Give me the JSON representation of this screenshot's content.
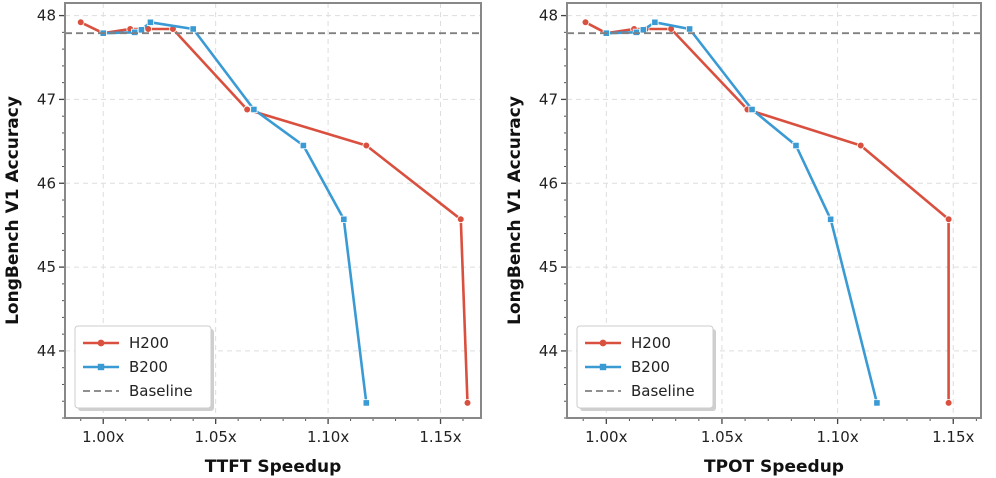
{
  "chart_data": [
    {
      "type": "line",
      "xlabel": "TTFT Speedup",
      "ylabel": "LongBench V1 Accuracy",
      "xlim": [
        0.983,
        1.168
      ],
      "ylim": [
        43.2,
        48.15
      ],
      "xticks": [
        1.0,
        1.05,
        1.1,
        1.15
      ],
      "xtick_labels": [
        "1.00x",
        "1.05x",
        "1.10x",
        "1.15x"
      ],
      "yticks": [
        44,
        45,
        46,
        47,
        48
      ],
      "ytick_labels": [
        "44",
        "45",
        "46",
        "47",
        "48"
      ],
      "grid": true,
      "legend_position": "lower-left",
      "series": [
        {
          "name": "H200",
          "color": "#d9503f",
          "marker": "circle",
          "x": [
            0.99,
            1.0,
            1.012,
            1.02,
            1.031,
            1.064,
            1.117,
            1.159,
            1.162
          ],
          "y": [
            47.92,
            47.79,
            47.84,
            47.84,
            47.84,
            46.88,
            46.45,
            45.57,
            43.38
          ]
        },
        {
          "name": "B200",
          "color": "#3a9ad4",
          "marker": "square",
          "x": [
            1.0,
            1.014,
            1.017,
            1.021,
            1.04,
            1.067,
            1.089,
            1.107,
            1.117
          ],
          "y": [
            47.79,
            47.8,
            47.83,
            47.92,
            47.84,
            46.88,
            46.45,
            45.57,
            43.38
          ]
        },
        {
          "name": "Baseline",
          "color": "#808080",
          "style": "dashed",
          "y_constant": 47.79
        }
      ]
    },
    {
      "type": "line",
      "xlabel": "TPOT Speedup",
      "ylabel": "LongBench V1 Accuracy",
      "xlim": [
        0.983,
        1.162
      ],
      "ylim": [
        43.2,
        48.15
      ],
      "xticks": [
        1.0,
        1.05,
        1.1,
        1.15
      ],
      "xtick_labels": [
        "1.00x",
        "1.05x",
        "1.10x",
        "1.15x"
      ],
      "yticks": [
        44,
        45,
        46,
        47,
        48
      ],
      "ytick_labels": [
        "44",
        "45",
        "46",
        "47",
        "48"
      ],
      "grid": true,
      "legend_position": "lower-left",
      "series": [
        {
          "name": "H200",
          "color": "#d9503f",
          "marker": "circle",
          "x": [
            0.991,
            1.0,
            1.012,
            1.017,
            1.028,
            1.061,
            1.11,
            1.148,
            1.148
          ],
          "y": [
            47.92,
            47.79,
            47.84,
            47.84,
            47.84,
            46.88,
            46.45,
            45.57,
            43.38
          ]
        },
        {
          "name": "B200",
          "color": "#3a9ad4",
          "marker": "square",
          "x": [
            1.0,
            1.013,
            1.016,
            1.021,
            1.036,
            1.063,
            1.082,
            1.097,
            1.117
          ],
          "y": [
            47.79,
            47.8,
            47.83,
            47.92,
            47.84,
            46.88,
            46.45,
            45.57,
            43.38
          ]
        },
        {
          "name": "Baseline",
          "color": "#808080",
          "style": "dashed",
          "y_constant": 47.79
        }
      ]
    }
  ]
}
